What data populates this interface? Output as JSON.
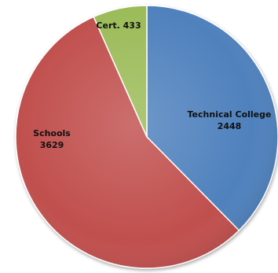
{
  "chart_data": {
    "type": "pie",
    "slices": [
      {
        "label": "Technical College",
        "value": 2448,
        "color": "#4f81bd"
      },
      {
        "label": "Schools",
        "value": 3629,
        "color": "#c0504d"
      },
      {
        "label": "Cert.",
        "value": 433,
        "color": "#9bbb59"
      }
    ],
    "labels": {
      "technical_name": "Technical College",
      "technical_value": "2448",
      "schools_name": "Schools",
      "schools_value": "3629",
      "cert_text": "Cert. 433"
    },
    "start_angle_deg": 0,
    "direction": "clockwise"
  }
}
